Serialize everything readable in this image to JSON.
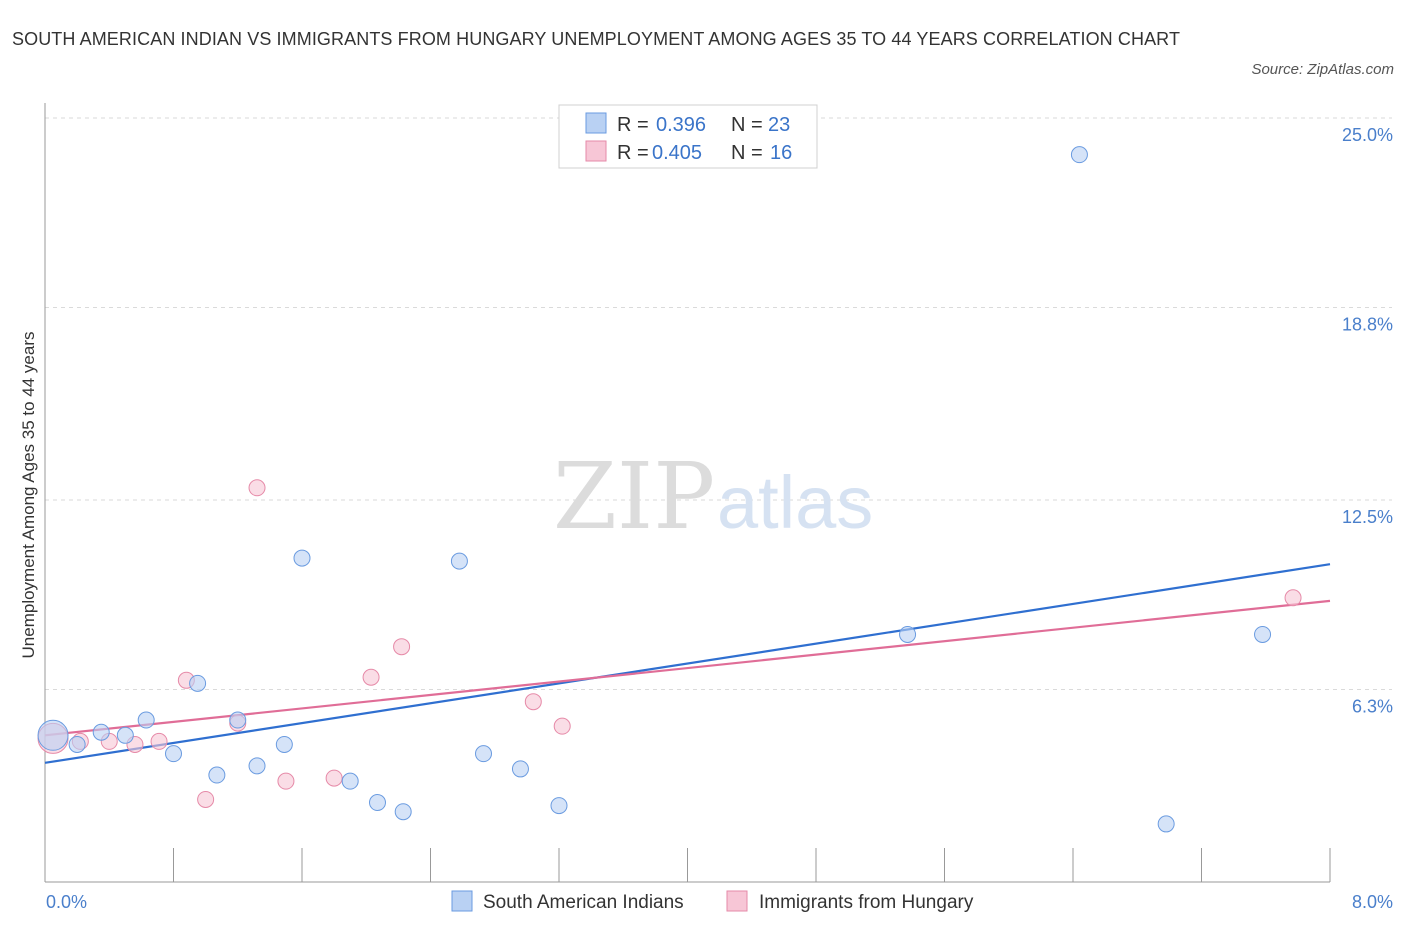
{
  "title": "SOUTH AMERICAN INDIAN VS IMMIGRANTS FROM HUNGARY UNEMPLOYMENT AMONG AGES 35 TO 44 YEARS CORRELATION CHART",
  "source": "Source: ZipAtlas.com",
  "watermark": {
    "zip": "ZIP",
    "atlas": "atlas"
  },
  "legend": {
    "r_label": "R =",
    "n_label": "N =",
    "rows": [
      {
        "r": "0.396",
        "n": "23"
      },
      {
        "r": "0.405",
        "n": "16"
      }
    ]
  },
  "chart_data": {
    "type": "scatter",
    "title": "SOUTH AMERICAN INDIAN VS IMMIGRANTS FROM HUNGARY UNEMPLOYMENT AMONG AGES 35 TO 44 YEARS CORRELATION CHART",
    "xlabel": "",
    "ylabel": "Unemployment Among Ages 35 to 44 years",
    "xlim": [
      0,
      8
    ],
    "ylim": [
      0,
      25
    ],
    "x_tick_labels": [
      "0.0%",
      "8.0%"
    ],
    "y_ticks": [
      {
        "value": 6.3,
        "label": "6.3%"
      },
      {
        "value": 12.5,
        "label": "12.5%"
      },
      {
        "value": 18.8,
        "label": "18.8%"
      },
      {
        "value": 25.0,
        "label": "25.0%"
      }
    ],
    "grid": true,
    "series": [
      {
        "name": "South American Indians",
        "color": "#6a9be0",
        "fill": "#b9d1f3",
        "points": [
          {
            "x": 0.05,
            "y": 4.8,
            "size": "large"
          },
          {
            "x": 0.2,
            "y": 4.5
          },
          {
            "x": 0.35,
            "y": 4.9
          },
          {
            "x": 0.5,
            "y": 4.8
          },
          {
            "x": 0.63,
            "y": 5.3
          },
          {
            "x": 0.8,
            "y": 4.2
          },
          {
            "x": 0.95,
            "y": 6.5
          },
          {
            "x": 1.07,
            "y": 3.5
          },
          {
            "x": 1.2,
            "y": 5.3
          },
          {
            "x": 1.32,
            "y": 3.8
          },
          {
            "x": 1.49,
            "y": 4.5
          },
          {
            "x": 1.6,
            "y": 10.6
          },
          {
            "x": 1.9,
            "y": 3.3
          },
          {
            "x": 2.07,
            "y": 2.6
          },
          {
            "x": 2.23,
            "y": 2.3
          },
          {
            "x": 2.58,
            "y": 10.5
          },
          {
            "x": 2.73,
            "y": 4.2
          },
          {
            "x": 2.96,
            "y": 3.7
          },
          {
            "x": 3.2,
            "y": 2.5
          },
          {
            "x": 5.37,
            "y": 8.1
          },
          {
            "x": 6.44,
            "y": 23.8
          },
          {
            "x": 6.98,
            "y": 1.9
          },
          {
            "x": 7.58,
            "y": 8.1
          }
        ],
        "trend": {
          "x0": 0,
          "y0": 3.9,
          "x1": 8,
          "y1": 10.4
        }
      },
      {
        "name": "Immigrants from Hungary",
        "color": "#e68aa8",
        "fill": "#f7c6d6",
        "points": [
          {
            "x": 0.05,
            "y": 4.7,
            "size": "large"
          },
          {
            "x": 0.22,
            "y": 4.6
          },
          {
            "x": 0.4,
            "y": 4.6
          },
          {
            "x": 0.56,
            "y": 4.5
          },
          {
            "x": 0.71,
            "y": 4.6
          },
          {
            "x": 0.88,
            "y": 6.6
          },
          {
            "x": 1.0,
            "y": 2.7
          },
          {
            "x": 1.2,
            "y": 5.2
          },
          {
            "x": 1.32,
            "y": 12.9
          },
          {
            "x": 1.5,
            "y": 3.3
          },
          {
            "x": 1.8,
            "y": 3.4
          },
          {
            "x": 2.03,
            "y": 6.7
          },
          {
            "x": 2.22,
            "y": 7.7
          },
          {
            "x": 3.04,
            "y": 5.9
          },
          {
            "x": 3.22,
            "y": 5.1
          },
          {
            "x": 7.77,
            "y": 9.3
          }
        ],
        "trend": {
          "x0": 0,
          "y0": 4.8,
          "x1": 8,
          "y1": 9.2
        }
      }
    ]
  }
}
